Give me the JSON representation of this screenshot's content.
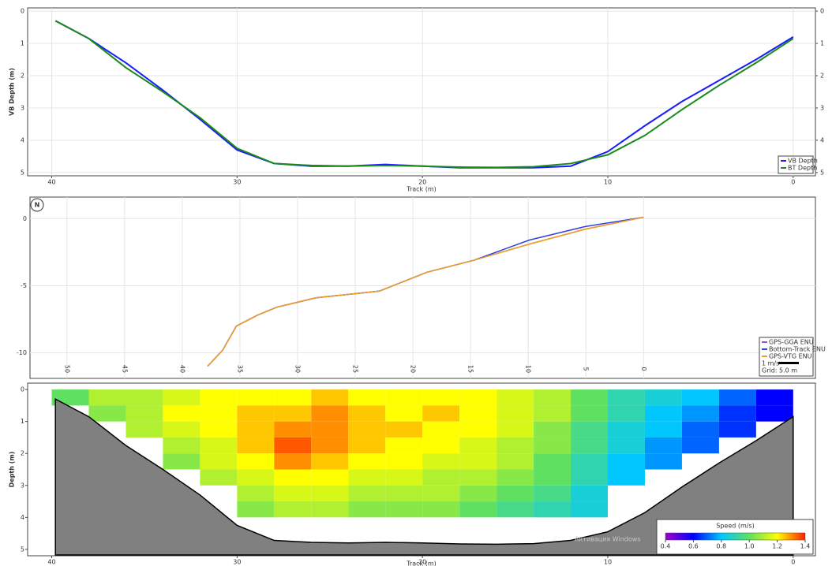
{
  "chart_data": [
    {
      "type": "line",
      "xlabel": "Track (m)",
      "ylabel": "VB Depth (m)",
      "x": [
        39.8,
        38,
        36,
        34,
        32,
        30,
        28,
        26,
        24,
        22,
        20,
        18,
        16,
        14,
        12,
        10,
        8,
        6,
        4,
        2,
        0
      ],
      "series": [
        {
          "name": "VB Depth",
          "color": "#1a1aff",
          "values": [
            0.3,
            0.85,
            1.6,
            2.45,
            3.35,
            4.3,
            4.72,
            4.8,
            4.8,
            4.75,
            4.8,
            4.85,
            4.85,
            4.85,
            4.8,
            4.35,
            3.55,
            2.8,
            2.15,
            1.5,
            0.8
          ]
        },
        {
          "name": "BT Depth",
          "color": "#1a8a1a",
          "values": [
            0.3,
            0.85,
            1.75,
            2.5,
            3.3,
            4.25,
            4.72,
            4.78,
            4.8,
            4.78,
            4.8,
            4.83,
            4.84,
            4.82,
            4.72,
            4.45,
            3.85,
            3.05,
            2.3,
            1.6,
            0.85
          ]
        }
      ],
      "xlim": [
        41.3,
        -1.2
      ],
      "xticks": [
        40,
        30,
        20,
        10,
        0
      ],
      "ylim": [
        -0.1,
        5.1
      ],
      "yticks": [
        0,
        1,
        2,
        3,
        4,
        5
      ],
      "y_inverted": true,
      "y2lim": [
        -0.1,
        5.1
      ],
      "y2ticks": [
        0,
        1,
        2,
        3,
        4,
        5
      ],
      "grid": true,
      "legend": "lower right"
    },
    {
      "type": "line",
      "north_label": "N",
      "x": [
        37.8,
        36.5,
        35.3,
        33.5,
        31.8,
        28.4,
        22.9,
        18.8,
        14.7,
        9.9,
        5.1,
        0
      ],
      "series": [
        {
          "name": "GPS-GGA ENU",
          "color": "#a050c0",
          "values": [
            -11.0,
            -9.8,
            -8.0,
            -7.2,
            -6.6,
            -5.9,
            -5.4,
            -4.0,
            -3.1,
            -1.9,
            -0.8,
            0.1
          ]
        },
        {
          "name": "Bottom-Track ENU",
          "color": "#3040e0",
          "values": [
            -11.0,
            -9.8,
            -8.0,
            -7.2,
            -6.6,
            -5.9,
            -5.4,
            -4.0,
            -3.1,
            -1.6,
            -0.6,
            0.1
          ]
        },
        {
          "name": "GPS-VTG ENU",
          "color": "#f0a020",
          "values": [
            -11.0,
            -9.8,
            -8.0,
            -7.2,
            -6.6,
            -5.9,
            -5.4,
            -4.0,
            -3.1,
            -1.9,
            -0.8,
            0.1
          ]
        }
      ],
      "scale_label": "1 m/s",
      "grid_label": "Grid: 5.0 m",
      "xlim": [
        53.2,
        -14.9
      ],
      "xticks": [
        50,
        45,
        40,
        35,
        30,
        25,
        20,
        15,
        10,
        5,
        0
      ],
      "ylim": [
        -11.9,
        1.6
      ],
      "yticks": [
        0,
        -5,
        -10
      ],
      "grid": true,
      "legend": "lower right"
    },
    {
      "type": "heatmap",
      "xlabel": "Track (m)",
      "ylabel": "Depth (m)",
      "colorbar_label": "Speed (m/s)",
      "watermark": "Активация Windows",
      "x": [
        39,
        37,
        35,
        33,
        31,
        29,
        27,
        25,
        23,
        21,
        19,
        17,
        15,
        13,
        11,
        9,
        7,
        5,
        3,
        1
      ],
      "y": [
        0.25,
        0.75,
        1.25,
        1.75,
        2.25,
        2.75,
        3.25,
        3.75
      ],
      "values": [
        [
          1.0,
          1.1,
          1.1,
          1.15,
          1.2,
          1.2,
          1.2,
          1.25,
          1.2,
          1.2,
          1.2,
          1.2,
          1.15,
          1.1,
          1.0,
          0.9,
          0.85,
          0.8,
          0.7,
          0.6
        ],
        [
          null,
          1.05,
          1.1,
          1.2,
          1.2,
          1.25,
          1.25,
          1.3,
          1.25,
          1.2,
          1.25,
          1.2,
          1.15,
          1.1,
          1.0,
          0.9,
          0.8,
          0.75,
          0.65,
          0.6
        ],
        [
          null,
          null,
          1.1,
          1.15,
          1.2,
          1.25,
          1.3,
          1.3,
          1.25,
          1.25,
          1.2,
          1.2,
          1.15,
          1.05,
          0.95,
          0.85,
          0.8,
          0.7,
          0.65,
          null
        ],
        [
          null,
          null,
          null,
          1.1,
          1.15,
          1.25,
          1.35,
          1.3,
          1.25,
          1.2,
          1.2,
          1.15,
          1.1,
          1.05,
          0.95,
          0.85,
          0.75,
          0.7,
          null,
          null
        ],
        [
          null,
          null,
          null,
          1.05,
          1.15,
          1.2,
          1.3,
          1.25,
          1.2,
          1.2,
          1.15,
          1.15,
          1.1,
          1.0,
          0.9,
          0.8,
          0.75,
          null,
          null,
          null
        ],
        [
          null,
          null,
          null,
          null,
          1.1,
          1.15,
          1.2,
          1.2,
          1.15,
          1.15,
          1.1,
          1.1,
          1.05,
          1.0,
          0.9,
          0.8,
          null,
          null,
          null,
          null
        ],
        [
          null,
          null,
          null,
          null,
          null,
          1.1,
          1.15,
          1.15,
          1.1,
          1.1,
          1.1,
          1.05,
          1.0,
          0.95,
          0.85,
          null,
          null,
          null,
          null,
          null
        ],
        [
          null,
          null,
          null,
          null,
          null,
          1.05,
          1.1,
          1.1,
          1.05,
          1.05,
          1.05,
          1.0,
          0.95,
          0.9,
          0.85,
          null,
          null,
          null,
          null,
          null
        ]
      ],
      "bottom_x": [
        39.8,
        38,
        36,
        34,
        32,
        30,
        28,
        26,
        24,
        22,
        20,
        18,
        16,
        14,
        12,
        10,
        8,
        6,
        4,
        2,
        0
      ],
      "bottom_depth": [
        0.3,
        0.85,
        1.75,
        2.5,
        3.3,
        4.25,
        4.72,
        4.78,
        4.8,
        4.78,
        4.8,
        4.83,
        4.84,
        4.82,
        4.72,
        4.45,
        3.85,
        3.05,
        2.3,
        1.6,
        0.85
      ],
      "bottom_color": "#808080",
      "colormap": [
        "#a000c8",
        "#0000ff",
        "#00c8ff",
        "#60e060",
        "#ffff00",
        "#ff2000"
      ],
      "zlim": [
        0.4,
        1.4
      ],
      "zticks": [
        0.4,
        0.6,
        0.8,
        {
          "value": 1,
          "label": "1.0"
        },
        1.2,
        1.4
      ],
      "xlim": [
        41.3,
        -1.2
      ],
      "xticks": [
        40,
        30,
        20,
        10,
        0
      ],
      "ylim": [
        -0.2,
        5.2
      ],
      "yticks": [
        0,
        1,
        2,
        3,
        4,
        5
      ],
      "y_inverted": true
    }
  ]
}
